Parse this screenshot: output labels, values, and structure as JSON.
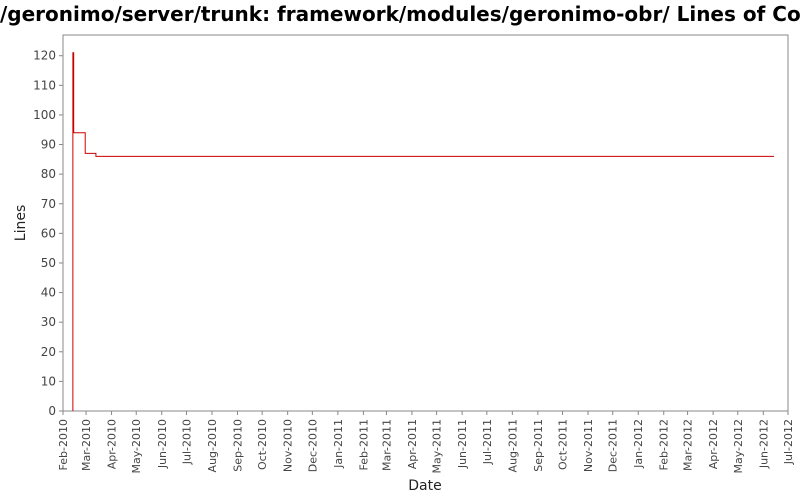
{
  "chart_data": {
    "type": "line",
    "title": "/geronimo/server/trunk: framework/modules/geronimo-obr/ Lines of Code",
    "xlabel": "Date",
    "ylabel": "Lines",
    "ylim": [
      0,
      127
    ],
    "xlim": [
      "2010-02-01",
      "2012-07-01"
    ],
    "y_ticks": [
      "0",
      "10",
      "20",
      "30",
      "40",
      "50",
      "60",
      "70",
      "80",
      "90",
      "100",
      "110",
      "120"
    ],
    "x_ticks": [
      "Feb-2010",
      "Mar-2010",
      "Apr-2010",
      "May-2010",
      "Jun-2010",
      "Jul-2010",
      "Aug-2010",
      "Sep-2010",
      "Oct-2010",
      "Nov-2010",
      "Dec-2010",
      "Jan-2011",
      "Feb-2011",
      "Mar-2011",
      "Apr-2011",
      "May-2011",
      "Jun-2011",
      "Jul-2011",
      "Aug-2011",
      "Sep-2011",
      "Oct-2011",
      "Nov-2011",
      "Dec-2011",
      "Jan-2012",
      "Feb-2012",
      "Mar-2012",
      "Apr-2012",
      "May-2012",
      "Jun-2012",
      "Jul-2012"
    ],
    "grid": false,
    "series": [
      {
        "color": "#cc0000",
        "step": true,
        "points": [
          {
            "x": "2010-02-13",
            "y": 0
          },
          {
            "x": "2010-02-13",
            "y": 121
          },
          {
            "x": "2010-02-14",
            "y": 94
          },
          {
            "x": "2010-02-28",
            "y": 87
          },
          {
            "x": "2010-03-13",
            "y": 86
          },
          {
            "x": "2012-06-14",
            "y": 86
          }
        ]
      }
    ]
  }
}
